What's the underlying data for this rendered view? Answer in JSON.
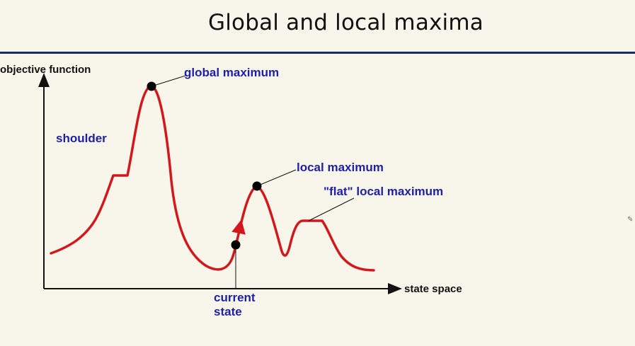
{
  "slide": {
    "title": "Global and local maxima"
  },
  "diagram": {
    "y_axis_label": "objective function",
    "x_axis_label": "state space",
    "labels": {
      "global_maximum": "global maximum",
      "shoulder": "shoulder",
      "local_maximum": "local maximum",
      "flat_local_maximum": "\"flat\" local maximum",
      "current_state_line1": "current",
      "current_state_line2": "state"
    },
    "colors": {
      "curve": "#d3181c",
      "label": "#1f20a8",
      "axis": "#111111",
      "title_rule": "#1a2a6e",
      "background": "#f8f5ea"
    }
  },
  "overlay": {
    "pen_cursor_icon": "pen-cursor-icon"
  }
}
